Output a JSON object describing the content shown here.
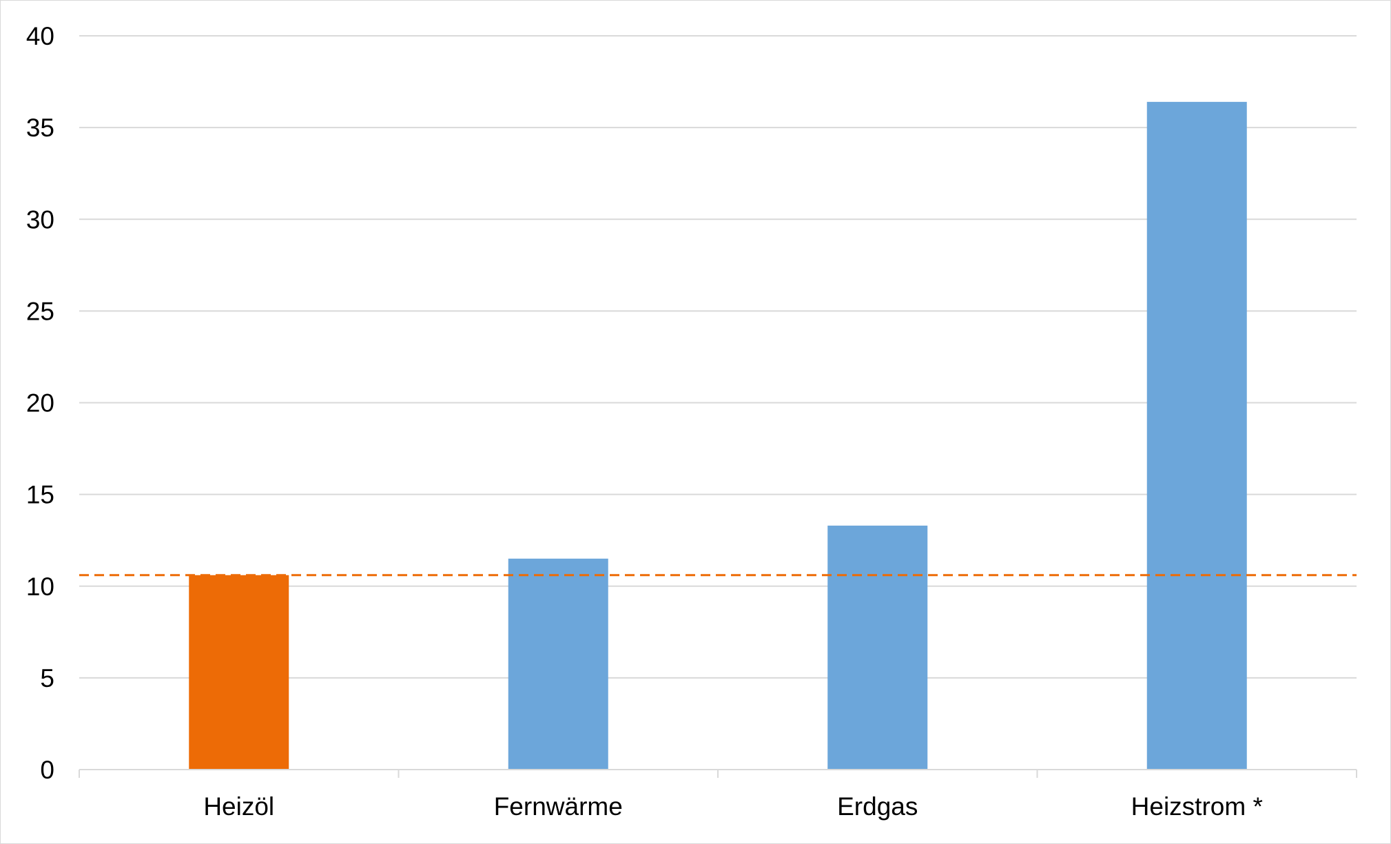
{
  "chart_data": {
    "type": "bar",
    "categories": [
      "Heizöl",
      "Fernwärme",
      "Erdgas",
      "Heizstrom *"
    ],
    "values": [
      10.6,
      11.5,
      13.3,
      36.4
    ],
    "ylim": [
      0,
      40
    ],
    "yticks": [
      0,
      5,
      10,
      15,
      20,
      25,
      30,
      35,
      40
    ],
    "ytick_labels": [
      "0",
      "5",
      "10",
      "15",
      "20",
      "25",
      "30",
      "35",
      "40"
    ],
    "reference_line": {
      "value": 10.6,
      "style": "dashed",
      "color": "#ed6b06"
    },
    "bar_colors": [
      "#ed6b06",
      "#6ca6da",
      "#6ca6da",
      "#6ca6da"
    ],
    "grid": true,
    "legend": false,
    "title": "",
    "xlabel": "",
    "ylabel": ""
  }
}
